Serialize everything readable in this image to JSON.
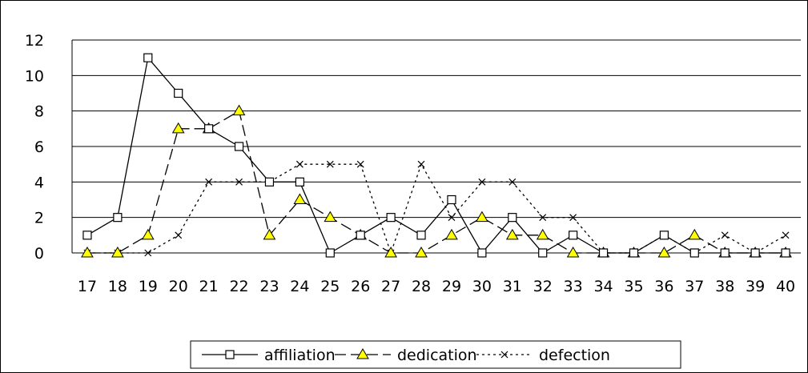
{
  "chart_data": {
    "type": "line",
    "categories": [
      "17",
      "18",
      "19",
      "20",
      "21",
      "22",
      "23",
      "24",
      "25",
      "26",
      "27",
      "28",
      "29",
      "30",
      "31",
      "32",
      "33",
      "34",
      "35",
      "36",
      "37",
      "38",
      "39",
      "40"
    ],
    "ylim": [
      0,
      12
    ],
    "yticks": [
      "0",
      "2",
      "4",
      "6",
      "8",
      "10",
      "12"
    ],
    "grid": true,
    "legend_position": "bottom",
    "series": [
      {
        "name": "affiliation",
        "marker": "square",
        "line_style": "solid",
        "color": "#000000",
        "marker_fill": "#ffffff",
        "values": [
          1,
          2,
          11,
          9,
          7,
          6,
          4,
          4,
          0,
          1,
          2,
          1,
          3,
          0,
          2,
          0,
          1,
          0,
          0,
          1,
          0,
          0,
          0,
          0
        ]
      },
      {
        "name": "dedication",
        "marker": "triangle",
        "line_style": "dashed",
        "color": "#000000",
        "marker_fill": "#ffff00",
        "values": [
          0,
          0,
          1,
          7,
          7,
          8,
          1,
          3,
          2,
          1,
          0,
          0,
          1,
          2,
          1,
          1,
          0,
          0,
          0,
          0,
          1,
          0,
          0,
          0
        ]
      },
      {
        "name": "defection",
        "marker": "x",
        "line_style": "dotted",
        "color": "#000000",
        "marker_fill": "#000000",
        "values": [
          0,
          0,
          0,
          1,
          4,
          4,
          4,
          5,
          5,
          5,
          0,
          5,
          2,
          4,
          4,
          2,
          2,
          0,
          0,
          1,
          0,
          1,
          0,
          1
        ]
      }
    ]
  }
}
